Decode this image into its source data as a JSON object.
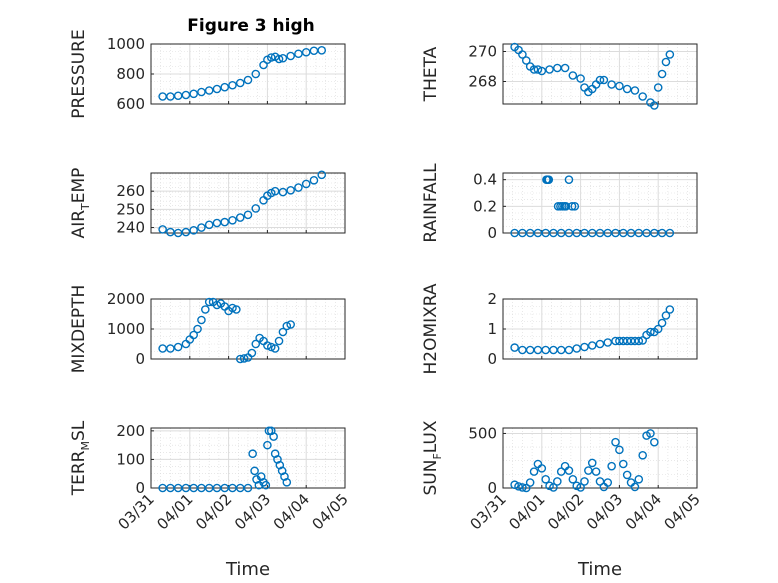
{
  "figure": {
    "title": "Figure 3 high"
  },
  "chart_data": [
    {
      "type": "scatter",
      "name": "PRESSURE",
      "ylabel": "PRESSURE",
      "ylim": [
        600,
        1000
      ],
      "yticks": [
        600,
        800,
        1000
      ],
      "xlabel": "",
      "x": [
        0.3,
        0.5,
        0.7,
        0.9,
        1.1,
        1.3,
        1.5,
        1.7,
        1.9,
        2.1,
        2.3,
        2.5,
        2.7,
        2.9,
        3.0,
        3.1,
        3.2,
        3.3,
        3.4,
        3.6,
        3.8,
        4.0,
        4.2,
        4.4
      ],
      "y": [
        650,
        650,
        655,
        660,
        668,
        680,
        690,
        700,
        712,
        725,
        740,
        760,
        800,
        860,
        895,
        910,
        915,
        900,
        905,
        920,
        935,
        945,
        955,
        958
      ]
    },
    {
      "type": "scatter",
      "name": "THETA",
      "ylabel": "THETA",
      "ylim": [
        266.5,
        270.5
      ],
      "yticks": [
        268,
        270
      ],
      "xlabel": "",
      "x": [
        0.3,
        0.4,
        0.5,
        0.6,
        0.7,
        0.8,
        0.9,
        1.0,
        1.2,
        1.4,
        1.6,
        1.8,
        2.0,
        2.1,
        2.2,
        2.3,
        2.4,
        2.5,
        2.6,
        2.8,
        3.0,
        3.2,
        3.4,
        3.6,
        3.8,
        3.9,
        4.0,
        4.1,
        4.2,
        4.3
      ],
      "y": [
        270.3,
        270.1,
        269.8,
        269.4,
        269.0,
        268.8,
        268.8,
        268.7,
        268.8,
        268.9,
        268.9,
        268.4,
        268.2,
        267.6,
        267.3,
        267.5,
        267.8,
        268.1,
        268.1,
        267.8,
        267.7,
        267.5,
        267.4,
        267.0,
        266.6,
        266.4,
        267.6,
        268.5,
        269.3,
        269.8
      ]
    },
    {
      "type": "scatter",
      "name": "AIR_TEMP",
      "ylabel": "AIR_TEMP",
      "ylim": [
        237,
        270
      ],
      "yticks": [
        240,
        250,
        260
      ],
      "xlabel": "",
      "x": [
        0.3,
        0.5,
        0.7,
        0.9,
        1.1,
        1.3,
        1.5,
        1.7,
        1.9,
        2.1,
        2.3,
        2.5,
        2.7,
        2.9,
        3.0,
        3.1,
        3.2,
        3.4,
        3.6,
        3.8,
        4.0,
        4.2,
        4.4
      ],
      "y": [
        239,
        237.5,
        237,
        237.5,
        238.5,
        240,
        241.5,
        242.5,
        243,
        244,
        245.5,
        247,
        250.5,
        255,
        257.5,
        259,
        260,
        259.5,
        260.5,
        262,
        264,
        266,
        269
      ]
    },
    {
      "type": "scatter",
      "name": "RAINFALL",
      "ylabel": "RAINFALL",
      "ylim": [
        0,
        0.45
      ],
      "yticks": [
        0,
        0.2,
        0.4
      ],
      "xlabel": "",
      "x": [
        0.3,
        0.5,
        0.7,
        0.9,
        1.1,
        1.3,
        1.5,
        1.7,
        1.9,
        2.1,
        2.3,
        2.5,
        2.7,
        2.9,
        3.1,
        3.3,
        3.5,
        3.7,
        3.9,
        4.1,
        4.3,
        1.12,
        1.15,
        1.18,
        1.42,
        1.48,
        1.53,
        1.58,
        1.62,
        1.78,
        1.85,
        1.7
      ],
      "y": [
        0,
        0,
        0,
        0,
        0,
        0,
        0,
        0,
        0,
        0,
        0,
        0,
        0,
        0,
        0,
        0,
        0,
        0,
        0,
        0,
        0,
        0.4,
        0.4,
        0.4,
        0.2,
        0.2,
        0.2,
        0.2,
        0.2,
        0.2,
        0.2,
        0.4
      ]
    },
    {
      "type": "scatter",
      "name": "MIXDEPTH",
      "ylabel": "MIXDEPTH",
      "ylim": [
        0,
        2000
      ],
      "yticks": [
        0,
        1000,
        2000
      ],
      "xlabel": "",
      "x": [
        0.3,
        0.5,
        0.7,
        0.9,
        1.0,
        1.1,
        1.2,
        1.3,
        1.4,
        1.5,
        1.6,
        1.7,
        1.8,
        1.9,
        2.0,
        2.1,
        2.2,
        2.3,
        2.4,
        2.5,
        2.6,
        2.7,
        2.8,
        2.9,
        3.0,
        3.1,
        3.2,
        3.3,
        3.4,
        3.5,
        3.6
      ],
      "y": [
        350,
        350,
        400,
        500,
        650,
        800,
        1000,
        1300,
        1650,
        1900,
        1900,
        1800,
        1850,
        1750,
        1600,
        1700,
        1650,
        0,
        20,
        50,
        200,
        500,
        700,
        600,
        450,
        400,
        350,
        600,
        900,
        1100,
        1150
      ]
    },
    {
      "type": "scatter",
      "name": "H2OMIXRA",
      "ylabel": "H2OMIXRA",
      "ylim": [
        0,
        2
      ],
      "yticks": [
        0,
        1,
        2
      ],
      "xlabel": "",
      "x": [
        0.3,
        0.5,
        0.7,
        0.9,
        1.1,
        1.3,
        1.5,
        1.7,
        1.9,
        2.1,
        2.3,
        2.5,
        2.7,
        2.9,
        3.0,
        3.1,
        3.2,
        3.3,
        3.4,
        3.5,
        3.6,
        3.7,
        3.8,
        3.9,
        4.0,
        4.1,
        4.2,
        4.3
      ],
      "y": [
        0.38,
        0.3,
        0.3,
        0.3,
        0.3,
        0.3,
        0.3,
        0.3,
        0.35,
        0.4,
        0.45,
        0.5,
        0.55,
        0.6,
        0.6,
        0.6,
        0.6,
        0.6,
        0.6,
        0.6,
        0.62,
        0.8,
        0.9,
        0.9,
        1.0,
        1.2,
        1.45,
        1.65
      ]
    },
    {
      "type": "scatter",
      "name": "TERR_MSL",
      "ylabel": "TERR_MSL",
      "ylim": [
        0,
        210
      ],
      "yticks": [
        0,
        100,
        200
      ],
      "xlabel": "Time",
      "x": [
        0.3,
        0.5,
        0.7,
        0.9,
        1.1,
        1.3,
        1.5,
        1.7,
        1.9,
        2.1,
        2.3,
        2.5,
        2.62,
        2.67,
        2.72,
        2.78,
        2.84,
        2.9,
        2.96,
        3.0,
        3.04,
        3.1,
        3.16,
        3.2,
        3.26,
        3.32,
        3.38,
        3.44,
        3.5
      ],
      "y": [
        0,
        0,
        0,
        0,
        0,
        0,
        0,
        0,
        0,
        0,
        0,
        0,
        120,
        60,
        30,
        10,
        40,
        20,
        10,
        150,
        200,
        200,
        180,
        120,
        100,
        80,
        60,
        40,
        20
      ]
    },
    {
      "type": "scatter",
      "name": "SUN_FLUX",
      "ylabel": "SUN_FLUX",
      "ylim": [
        0,
        550
      ],
      "yticks": [
        0,
        500
      ],
      "xlabel": "Time",
      "x": [
        0.3,
        0.4,
        0.5,
        0.6,
        0.7,
        0.8,
        0.9,
        1.0,
        1.1,
        1.2,
        1.3,
        1.4,
        1.5,
        1.6,
        1.7,
        1.8,
        1.9,
        2.0,
        2.1,
        2.2,
        2.3,
        2.4,
        2.5,
        2.6,
        2.7,
        2.8,
        2.9,
        3.0,
        3.1,
        3.2,
        3.3,
        3.4,
        3.5,
        3.6,
        3.7,
        3.8,
        3.9
      ],
      "y": [
        30,
        15,
        5,
        0,
        50,
        150,
        220,
        180,
        80,
        20,
        5,
        60,
        150,
        200,
        160,
        80,
        20,
        5,
        60,
        160,
        230,
        150,
        60,
        10,
        50,
        200,
        420,
        350,
        220,
        120,
        50,
        10,
        80,
        300,
        480,
        500,
        420
      ]
    }
  ],
  "x_axis": {
    "ticks": [
      "03/31",
      "04/01",
      "04/02",
      "04/03",
      "04/04",
      "04/05"
    ]
  },
  "style": {
    "marker_color": "#0072BD",
    "grid": "on"
  }
}
